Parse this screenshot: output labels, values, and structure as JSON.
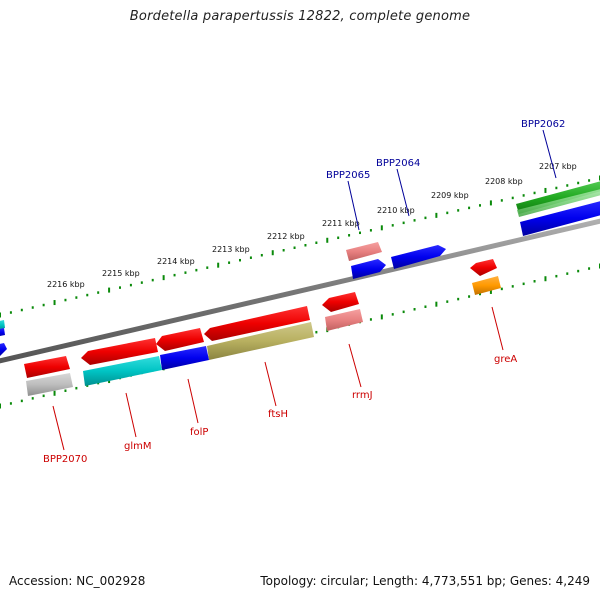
{
  "title": "Bordetella parapertussis 12822, complete genome",
  "footer": {
    "accession": "Accession: NC_002928",
    "summary": "Topology: circular; Length: 4,773,551 bp; Genes: 4,249"
  },
  "colors": {
    "backbone": "#808080",
    "tick": "#0a8a0a",
    "label_red": "#cc0000",
    "label_blue": "#000099"
  },
  "tick_labels": [
    {
      "text": "2207 kbp"
    },
    {
      "text": "2208 kbp"
    },
    {
      "text": "2209 kbp"
    },
    {
      "text": "2210 kbp"
    },
    {
      "text": "2211 kbp"
    },
    {
      "text": "2212 kbp"
    },
    {
      "text": "2213 kbp"
    },
    {
      "text": "2214 kbp"
    },
    {
      "text": "2215 kbp"
    },
    {
      "text": "2216 kbp"
    }
  ],
  "gene_labels": [
    {
      "name": "BPP2062",
      "color": "#000099"
    },
    {
      "name": "BPP2064",
      "color": "#000099"
    },
    {
      "name": "BPP2065",
      "color": "#000099"
    },
    {
      "name": "greA",
      "color": "#cc0000"
    },
    {
      "name": "rrmJ",
      "color": "#cc0000"
    },
    {
      "name": "ftsH",
      "color": "#cc0000"
    },
    {
      "name": "folP",
      "color": "#cc0000"
    },
    {
      "name": "glmM",
      "color": "#cc0000"
    },
    {
      "name": "BPP2070",
      "color": "#cc0000"
    }
  ]
}
